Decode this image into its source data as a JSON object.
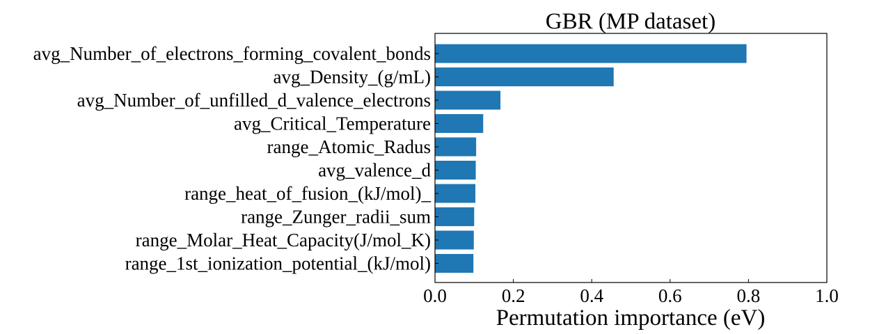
{
  "chart_data": {
    "type": "bar",
    "orientation": "horizontal",
    "title": "GBR (MP dataset)",
    "xlabel": "Permutation importance (eV)",
    "ylabel": "",
    "xlim": [
      0.0,
      1.0
    ],
    "xticks": [
      "0.0",
      "0.2",
      "0.4",
      "0.6",
      "0.8",
      "1.0"
    ],
    "grid": false,
    "bar_color": "#1f77b4",
    "categories": [
      "avg_Number_of_electrons_forming_covalent_bonds",
      "avg_Density_(g/mL)",
      "avg_Number_of_unfilled_d_valence_electrons",
      "avg_Critical_Temperature",
      "range_Atomic_Radus",
      "avg_valence_d",
      "range_heat_of_fusion_(kJ/mol)_",
      "range_Zunger_radii_sum",
      "range_Molar_Heat_Capacity(J/mol_K)",
      "range_1st_ionization_potential_(kJ/mol)"
    ],
    "values": [
      0.795,
      0.456,
      0.167,
      0.123,
      0.105,
      0.104,
      0.103,
      0.1,
      0.099,
      0.098
    ]
  }
}
